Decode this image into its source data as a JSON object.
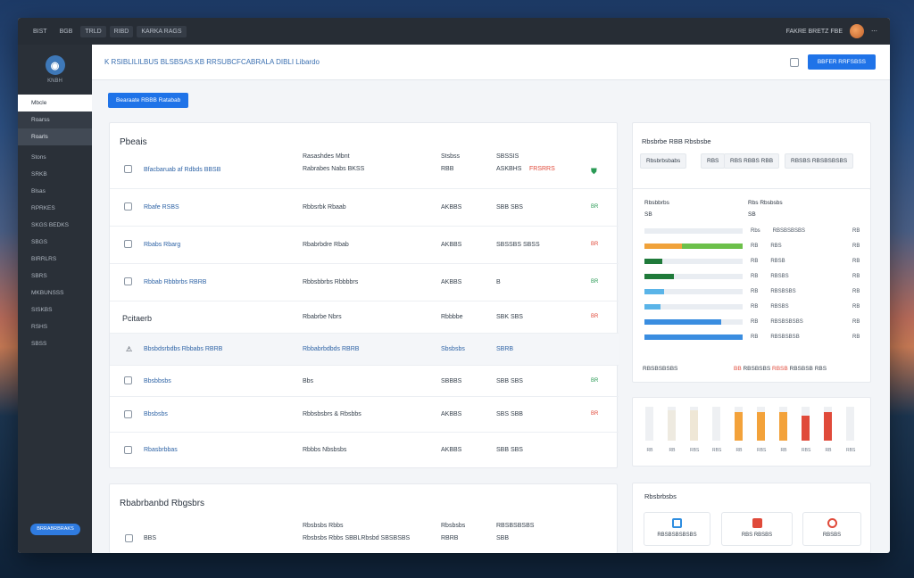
{
  "topbar": {
    "menu": [
      "BIST",
      "BGB",
      "TRLD",
      "RIBD",
      "KARKA RAGS"
    ],
    "right_text": "FAKRE BRETZ FBE"
  },
  "sidebar": {
    "brand": "KNBH",
    "items": [
      "Mbcle",
      "Roarss",
      "Roarls"
    ],
    "nav": [
      "Stons",
      "SRKB",
      "Blsas",
      "RPRKES",
      "SKGS BEDKS",
      "SBGS",
      "BIRRLRS",
      "SBRS",
      "MKBUNSSS",
      "SISKBS",
      "RSHS",
      "SBSS"
    ],
    "bottom_button": "BRRABRBRAKS"
  },
  "header": {
    "breadcrumb": "K RSIBLILILBUS BLSBSAS.KB RRSUBCFCABRALA DIBLI Libardo",
    "primary_button": "BBFER RRFSBSS"
  },
  "action_button": "Bearaate RBBB Ratabab",
  "main": {
    "section1_title": "Pbeais",
    "col_head_2": "Rasashdes Mbnt",
    "col_head_2b": "Rabrabes Nabs BKSS",
    "col_head_3": "Stsbss",
    "col_head_3b": "RBB",
    "col_head_4": "SBSSIS",
    "col_head_4b": "ASKBHS",
    "col_head_4c": "FRSRRS",
    "rows1": [
      {
        "name": "Bfacbaruab af Rdbds BBSB",
        "c2": "",
        "c3": "",
        "c4": "",
        "status": ""
      },
      {
        "name": "Rbafe RSBS",
        "c2": "Rbbsrbk Rbaab",
        "c3": "AKBBS",
        "c4": "SBB SBS",
        "status": "BR"
      },
      {
        "name": "Rbabs Rbarg",
        "c2": "Rbabrbdre Rbab",
        "c3": "AKBBS",
        "c4": "SBSSBS SBSS",
        "status": "BR"
      },
      {
        "name": "Rbbab Rbbbrbs RBRB",
        "c2": "Rbbsbbrbs Rbbbbrs",
        "c3": "AKBBS",
        "c4": "B",
        "status": "BR"
      }
    ],
    "section2_title": "Pcitaerb",
    "section2_c2": "Rbabrbe Nbrs",
    "section2_c3": "Rbbbbe",
    "section2_c4": "SBK SBS",
    "section2_status": "BR",
    "rows2": [
      {
        "name": "Bbsbdsrbdbs Rbbabs RBRB",
        "c2": "Rbbabrbdbds RBRB",
        "c3": "Sbsbsbs",
        "c4": "SBRB",
        "status": ""
      },
      {
        "name": "Bbsbbsbs",
        "c2": "Bbs",
        "c3": "SBBBS",
        "c4": "SBB SBS",
        "status": "BR"
      },
      {
        "name": "Bbsbsbs",
        "c2": "Rbbsbsbrs & Rbsbbs",
        "c3": "AKBBS",
        "c4": "SBS SBB",
        "status": "BR"
      },
      {
        "name": "Rbasbrbbas",
        "c2": "Rbbbs Nbsbsbs",
        "c3": "AKBBS",
        "c4": "SBB SBS",
        "status": ""
      }
    ]
  },
  "bottom": {
    "title": "Rbabrbanbd Rbgsbrs",
    "c2": "Rbsbsbs Rbbs",
    "c2b": "Rbsbsbs Rbbs SBBLRbsbd SBSBSBS",
    "c3": "Rbsbsbs",
    "c3b": "RBRB",
    "c4": "RBSBSBSBS",
    "c4b": "SBB",
    "row_label": "BBS"
  },
  "right": {
    "panel1_title": "Rbsbrbe RBB Rbsbsbe",
    "chips": [
      "Rbsbrbsbabs",
      "RBS",
      "RBS RBBS RBB",
      "RBSBS RBSBSBSBS"
    ],
    "panel2_left_title": "Rbsbbrbs",
    "panel2_left_sub": "SB",
    "panel2_right_title": "Rbs Rbsbsbs",
    "panel2_right_sub": "SB",
    "bars": [
      {
        "label": "SB",
        "fill": 0.0,
        "color": "#e9edf2"
      },
      {
        "label": "",
        "fill": 1.0,
        "color": "#f0a23a",
        "fill2": 0.62,
        "color2": "#6cc04a"
      },
      {
        "label": "",
        "fill": 0.18,
        "color": "#1f7a3a"
      },
      {
        "label": "",
        "fill": 0.3,
        "color": "#1f7a3a"
      },
      {
        "label": "",
        "fill": 0.2,
        "color": "#5ab4e8"
      },
      {
        "label": "",
        "fill": 0.16,
        "color": "#5ab4e8"
      },
      {
        "label": "",
        "fill": 0.78,
        "color": "#3a8de0"
      },
      {
        "label": "",
        "fill": 1.0,
        "color": "#3a8de0"
      }
    ],
    "list": [
      {
        "k": "Rbs",
        "v": "RBSBSBSBS",
        "n": "RB"
      },
      {
        "k": "RB",
        "v": "RBS",
        "n": "RB"
      },
      {
        "k": "RB",
        "v": "RBSB",
        "n": "RB"
      },
      {
        "k": "RB",
        "v": "RBSBS",
        "n": "RB"
      },
      {
        "k": "RB",
        "v": "RBSBSBS",
        "n": "RB"
      },
      {
        "k": "RB",
        "v": "RBSBS",
        "n": "RB"
      },
      {
        "k": "RB",
        "v": "RBSBSBSBS",
        "n": "RB"
      },
      {
        "k": "RB",
        "v": "RBSBSBSB",
        "n": "RB"
      }
    ],
    "foot_left": "RBSBSBSBS",
    "foot_right": [
      {
        "v": "BB",
        "color": "#e04a3a"
      },
      {
        "v": "RBSBSBS",
        "color": "#36414d"
      },
      {
        "v": "RBSB",
        "color": "#e04a3a"
      },
      {
        "v": "RBSBSB",
        "color": "#36414d"
      },
      {
        "v": "RBS",
        "color": "#36414d"
      }
    ],
    "vbars": [
      {
        "v": 0.9,
        "color": "#eef0f3",
        "label": "RB"
      },
      {
        "v": 0.9,
        "color": "#eeeae0",
        "label": "RB"
      },
      {
        "v": 0.9,
        "color": "#efe7d6",
        "label": "RBS"
      },
      {
        "v": 0.9,
        "color": "#eef0f3",
        "label": "RBS"
      },
      {
        "v": 0.85,
        "color": "#f3a23a",
        "label": "RB"
      },
      {
        "v": 0.85,
        "color": "#f3a23a",
        "label": "RBS"
      },
      {
        "v": 0.85,
        "color": "#f3a23a",
        "label": "RB"
      },
      {
        "v": 0.75,
        "color": "#e04a3a",
        "label": "RBS"
      },
      {
        "v": 0.85,
        "color": "#e04a3a",
        "label": "RB"
      },
      {
        "v": 0.85,
        "color": "#eef0f3",
        "label": "RBS"
      }
    ],
    "panel4_title": "Rbsbrbsbs",
    "tiles": [
      {
        "label": "RBSBSBSBSBS",
        "color": "#2f8ee0"
      },
      {
        "label": "RBS RBSBS",
        "color": "#e04a3a"
      },
      {
        "label": "RBSBS",
        "color": "#e04a3a"
      }
    ]
  }
}
